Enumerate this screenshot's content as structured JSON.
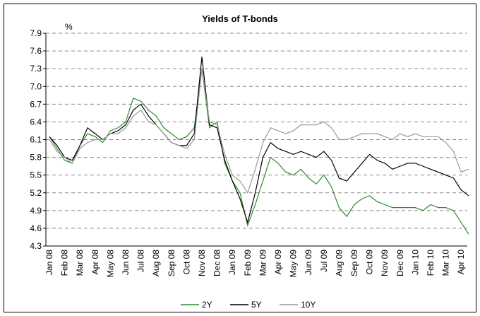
{
  "chart_data": {
    "type": "line",
    "title": "Yields of T-bonds",
    "y_label": "%",
    "categories": [
      "Jan 08",
      null,
      "Feb 08",
      null,
      "Mar 08",
      null,
      "Apr 08",
      null,
      "May 08",
      null,
      "Jun 08",
      null,
      "Jul 08",
      null,
      "Aug 08",
      null,
      "Sep 08",
      null,
      "Oct 08",
      null,
      "Nov 08",
      null,
      "Dec 08",
      null,
      "Jan 09",
      null,
      "Feb 09",
      null,
      "Mar 09",
      null,
      "Apr 09",
      null,
      "May 09",
      null,
      "Jun 09",
      null,
      "Jul 09",
      null,
      "Aug 09",
      null,
      "Sep 09",
      null,
      "Oct 09",
      null,
      "Nov 09",
      null,
      "Dec 09",
      null,
      "Jan 10",
      null,
      "Feb 10",
      null,
      "Mar 10",
      null,
      "Apr 10",
      null
    ],
    "series": [
      {
        "name": "2Y",
        "color": "#2e8b2e",
        "values": [
          6.15,
          5.95,
          5.75,
          5.7,
          6.0,
          6.2,
          6.15,
          6.05,
          6.25,
          6.3,
          6.4,
          6.8,
          6.75,
          6.6,
          6.5,
          6.3,
          6.2,
          6.1,
          6.15,
          6.3,
          7.3,
          6.3,
          6.4,
          5.7,
          5.4,
          5.2,
          4.65,
          5.0,
          5.4,
          5.8,
          5.7,
          5.55,
          5.5,
          5.6,
          5.45,
          5.35,
          5.5,
          5.3,
          4.95,
          4.8,
          5.0,
          5.1,
          5.15,
          5.05,
          5.0,
          4.95,
          4.95,
          4.95,
          4.95,
          4.9,
          5.0,
          4.95,
          4.95,
          4.9,
          4.7,
          4.5
        ]
      },
      {
        "name": "5Y",
        "color": "#000000",
        "values": [
          6.15,
          6.0,
          5.8,
          5.75,
          6.0,
          6.3,
          6.2,
          6.1,
          6.2,
          6.25,
          6.35,
          6.6,
          6.7,
          6.5,
          6.35,
          6.2,
          6.05,
          6.0,
          6.0,
          6.2,
          7.5,
          6.35,
          6.3,
          5.75,
          5.4,
          5.1,
          4.7,
          5.2,
          5.8,
          6.05,
          5.95,
          5.9,
          5.85,
          5.9,
          5.85,
          5.8,
          5.9,
          5.75,
          5.45,
          5.4,
          5.55,
          5.7,
          5.85,
          5.75,
          5.7,
          5.6,
          5.65,
          5.7,
          5.7,
          5.65,
          5.6,
          5.55,
          5.5,
          5.45,
          5.25,
          5.15
        ]
      },
      {
        "name": "10Y",
        "color": "#999999",
        "values": [
          6.1,
          5.9,
          5.8,
          5.7,
          5.95,
          6.05,
          6.1,
          6.1,
          6.2,
          6.2,
          6.3,
          6.5,
          6.6,
          6.4,
          6.35,
          6.2,
          6.05,
          6.0,
          5.95,
          6.1,
          7.3,
          6.4,
          6.35,
          5.85,
          5.5,
          5.4,
          5.2,
          5.6,
          6.05,
          6.3,
          6.25,
          6.2,
          6.25,
          6.35,
          6.35,
          6.35,
          6.4,
          6.3,
          6.1,
          6.1,
          6.15,
          6.2,
          6.2,
          6.2,
          6.15,
          6.1,
          6.2,
          6.15,
          6.2,
          6.15,
          6.15,
          6.15,
          6.05,
          5.9,
          5.55,
          5.6
        ]
      }
    ],
    "ylim": [
      4.3,
      7.9
    ],
    "yticks": [
      4.3,
      4.6,
      4.9,
      5.2,
      5.5,
      5.8,
      6.1,
      6.4,
      6.7,
      {
        "value": 7,
        "label": "7.0"
      },
      7.3,
      7.6,
      7.9
    ],
    "grid": true,
    "legend": "bottom"
  }
}
